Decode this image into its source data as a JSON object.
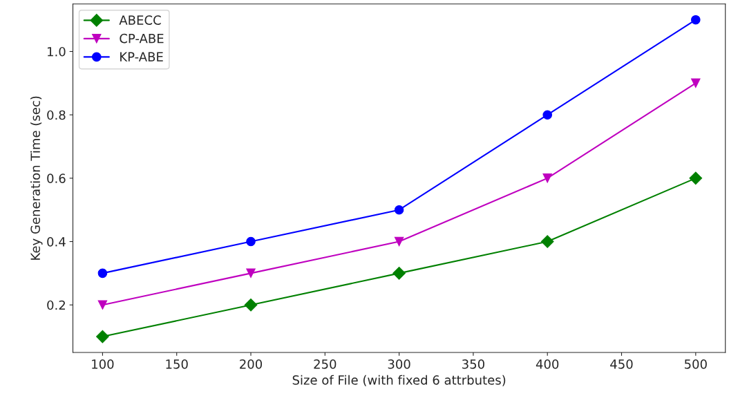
{
  "chart_data": {
    "type": "line",
    "xlabel": "Size of File (with fixed 6 attrbutes)",
    "ylabel": "Key Generation Time (sec)",
    "x": [
      100,
      200,
      300,
      400,
      500
    ],
    "series": [
      {
        "name": "ABECC",
        "color": "#008000",
        "marker": "diamond",
        "values": [
          0.1,
          0.2,
          0.3,
          0.4,
          0.6
        ]
      },
      {
        "name": "CP-ABE",
        "color": "#bf00bf",
        "marker": "triangle",
        "values": [
          0.2,
          0.3,
          0.4,
          0.6,
          0.9
        ]
      },
      {
        "name": "KP-ABE",
        "color": "#0000ff",
        "marker": "circle",
        "values": [
          0.3,
          0.4,
          0.5,
          0.8,
          1.1
        ]
      }
    ],
    "xlim": [
      80,
      520
    ],
    "ylim": [
      0.05,
      1.15
    ],
    "xticks": [
      100,
      150,
      200,
      250,
      300,
      350,
      400,
      450,
      500
    ],
    "yticks": [
      {
        "value": 0.2,
        "label": "0.2"
      },
      {
        "value": 0.4,
        "label": "0.4"
      },
      {
        "value": 0.6,
        "label": "0.6"
      },
      {
        "value": 0.8,
        "label": "0.8"
      },
      {
        "value": 1.0,
        "label": "1.0"
      }
    ],
    "grid": false,
    "legend": "top left",
    "line_style": "solid"
  }
}
